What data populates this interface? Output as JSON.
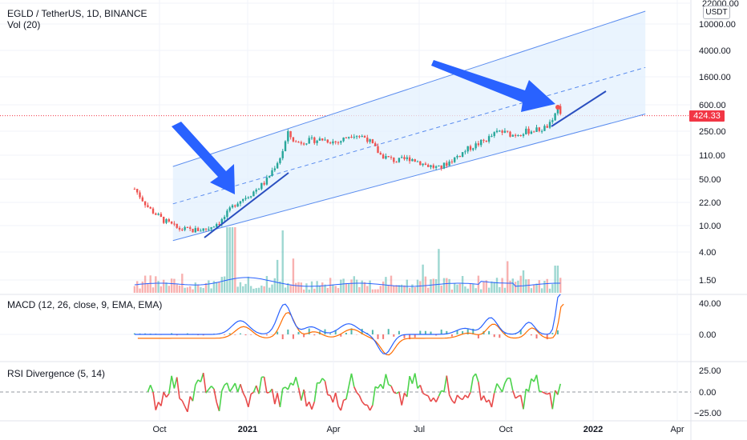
{
  "header": {
    "symbol_line": "EGLD / TetherUS, 1D, BINANCE",
    "volume_label": "Vol (20)",
    "macd_label": "MACD (12, 26, close, 9, EMA, EMA)",
    "rsi_label": "RSI Divergence (5, 14)",
    "currency_button": "USDT"
  },
  "colors": {
    "channel_fill": "#e3f0fd",
    "channel_line": "#5b8def",
    "trend_line": "#2a4fc0",
    "arrow": "#2962ff",
    "candle_up": "#26a69a",
    "candle_down": "#ef5350",
    "macd_line": "#2962ff",
    "signal_line": "#ff6d00",
    "rsi_up": "#4cd34c",
    "rsi_down": "#e84a4a",
    "price_line": "#f23645"
  },
  "chart_data": {
    "type": "candlestick",
    "symbol": "EGLD / TetherUS",
    "interval": "1D",
    "exchange": "BINANCE",
    "price_axis": {
      "scale": "log",
      "ticks": [
        "22000.00",
        "10000.00",
        "4000.00",
        "1600.00",
        "600.00",
        "250.00",
        "110.00",
        "50.00",
        "22.00",
        "10.00",
        "4.00",
        "1.50"
      ],
      "current_price": "424.33"
    },
    "time_axis": {
      "ticks": [
        "Oct",
        "2021",
        "Apr",
        "Jul",
        "Oct",
        "2022",
        "Apr"
      ]
    },
    "price_series": {
      "dates": [
        "2020-09-05",
        "2020-09-20",
        "2020-10-05",
        "2020-10-20",
        "2020-11-05",
        "2020-11-20",
        "2020-12-05",
        "2020-12-20",
        "2021-01-05",
        "2021-01-20",
        "2021-02-05",
        "2021-02-12",
        "2021-02-20",
        "2021-03-05",
        "2021-03-20",
        "2021-04-05",
        "2021-04-20",
        "2021-05-05",
        "2021-05-20",
        "2021-06-05",
        "2021-06-20",
        "2021-07-05",
        "2021-07-20",
        "2021-08-05",
        "2021-08-20",
        "2021-09-05",
        "2021-09-20",
        "2021-10-05",
        "2021-10-20",
        "2021-11-05",
        "2021-11-15",
        "2021-11-20",
        "2021-11-25"
      ],
      "close": [
        35,
        18,
        12,
        9,
        8.5,
        9,
        12,
        22,
        30,
        45,
        110,
        230,
        170,
        180,
        190,
        170,
        230,
        200,
        110,
        90,
        100,
        80,
        70,
        100,
        140,
        180,
        250,
        220,
        250,
        270,
        330,
        600,
        424
      ]
    },
    "channel": {
      "upper": {
        "from": {
          "date": "2020-10-15",
          "price": 75
        },
        "to": {
          "date": "2022-02-20",
          "price": 15000
        }
      },
      "middle": {
        "from": {
          "date": "2020-10-15",
          "price": 21
        },
        "to": {
          "date": "2022-02-20",
          "price": 2200
        }
      },
      "lower": {
        "from": {
          "date": "2020-10-15",
          "price": 6
        },
        "to": {
          "date": "2022-02-20",
          "price": 450
        }
      }
    },
    "macd_axis": {
      "ticks": [
        "40.00",
        "0.00"
      ]
    },
    "rsi_axis": {
      "ticks": [
        "25.00",
        "0.00",
        "−25.00"
      ]
    }
  },
  "axis_text": {
    "price": [
      "22000.00",
      "10000.00",
      "4000.00",
      "1600.00",
      "600.00",
      "250.00",
      "110.00",
      "50.00",
      "22.00",
      "10.00",
      "4.00",
      "1.50"
    ],
    "current_price": "424.33",
    "macd": [
      "40.00",
      "0.00"
    ],
    "rsi": [
      "25.00",
      "0.00",
      "−25.00"
    ],
    "time": [
      "Oct",
      "2021",
      "Apr",
      "Jul",
      "Oct",
      "2022",
      "Apr"
    ]
  }
}
